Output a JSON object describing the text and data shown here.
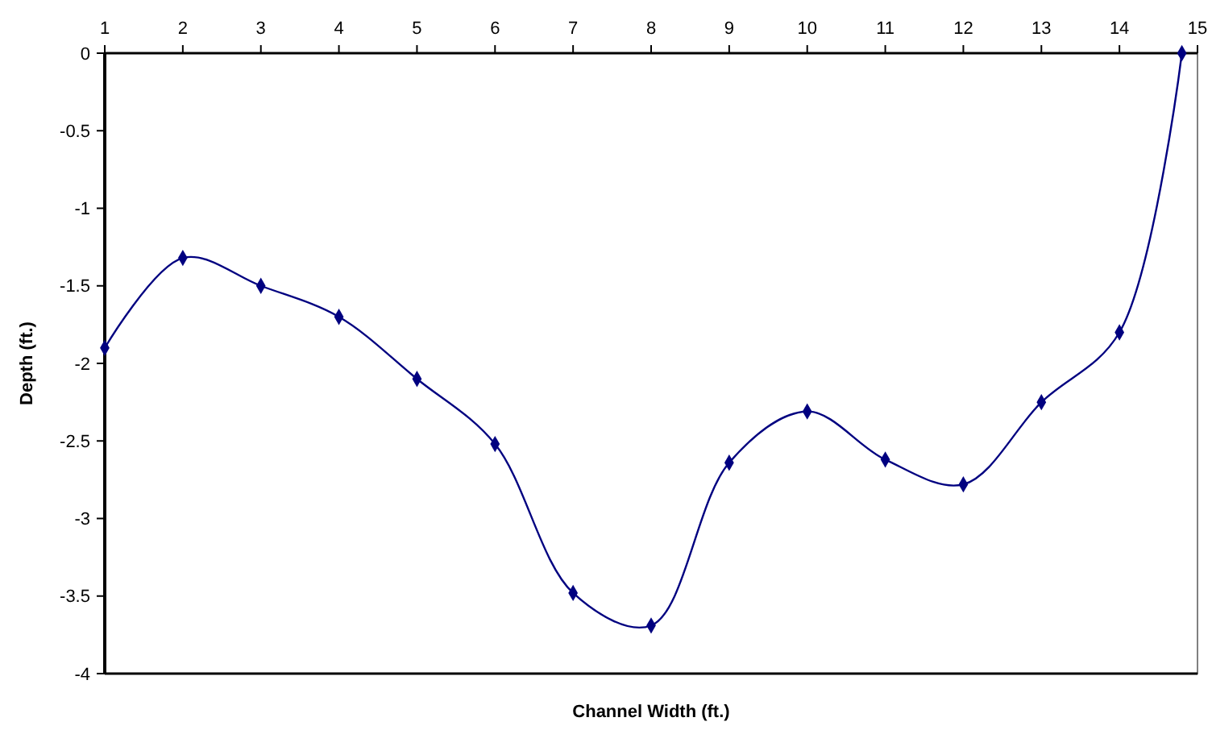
{
  "chart_data": {
    "type": "line",
    "xlabel": "Channel Width (ft.)",
    "ylabel": "Depth (ft.)",
    "x": [
      1,
      2,
      3,
      4,
      5,
      6,
      7,
      8,
      9,
      10,
      11,
      12,
      13,
      14,
      14.8
    ],
    "series": [
      {
        "color": "#000080",
        "values": [
          -1.9,
          -1.32,
          -1.5,
          -1.7,
          -2.1,
          -2.52,
          -3.48,
          -3.69,
          -2.64,
          -2.31,
          -2.62,
          -2.78,
          -2.25,
          -1.8,
          0
        ]
      }
    ],
    "xlim": [
      1,
      15
    ],
    "xticks": [
      1,
      2,
      3,
      4,
      5,
      6,
      7,
      8,
      9,
      10,
      11,
      12,
      13,
      14,
      15
    ],
    "ylim": [
      -4,
      0
    ],
    "yticks": [
      0,
      -0.5,
      -1,
      -1.5,
      -2,
      -2.5,
      -3,
      -3.5,
      -4
    ],
    "marker": "diamond",
    "line_style": "solid",
    "grid": false
  }
}
